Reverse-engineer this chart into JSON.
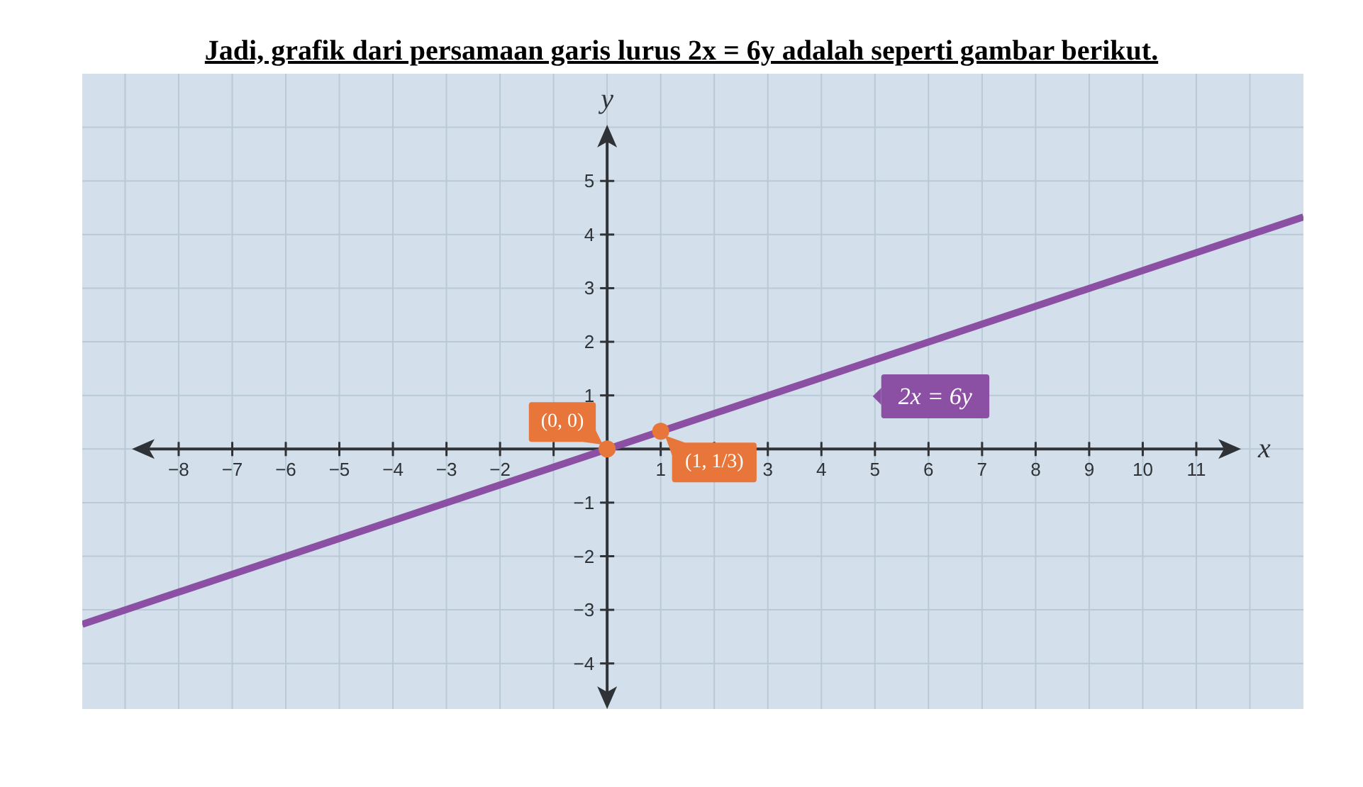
{
  "chart_data": {
    "type": "line",
    "title": "Jadi, grafik dari persamaan garis lurus 2x = 6y adalah seperti gambar berikut.",
    "xlabel": "x",
    "ylabel": "y",
    "xlim": [
      -9.8,
      13
    ],
    "ylim": [
      -4.85,
      7
    ],
    "xticks": [
      {
        "value": -9,
        "label": null
      },
      {
        "value": -8,
        "label": "−8"
      },
      {
        "value": -7,
        "label": "−7"
      },
      {
        "value": -6,
        "label": "−6"
      },
      {
        "value": -5,
        "label": "−5"
      },
      {
        "value": -4,
        "label": "−4"
      },
      {
        "value": -3,
        "label": "−3"
      },
      {
        "value": -2,
        "label": "−2"
      },
      {
        "value": -1,
        "label": null
      },
      {
        "value": 0,
        "label": null
      },
      1,
      {
        "value": 2,
        "label": null
      },
      3,
      4,
      5,
      6,
      7,
      8,
      9,
      10,
      11,
      {
        "value": 12,
        "label": null
      }
    ],
    "yticks": [
      {
        "value": -4,
        "label": "−4"
      },
      {
        "value": -3,
        "label": "−3"
      },
      {
        "value": -2,
        "label": "−2"
      },
      {
        "value": -1,
        "label": "−1"
      },
      {
        "value": 0,
        "label": null
      },
      1,
      2,
      3,
      4,
      5,
      {
        "value": 6,
        "label": null
      }
    ],
    "grid": true,
    "series": [
      {
        "name": "2x = 6y",
        "color": "#8b4fa3",
        "x": [
          -9.8,
          13
        ],
        "values": [
          -3.27,
          4.33
        ]
      },
      {
        "type": "scatter",
        "color": "#e8763a",
        "marker": "circle",
        "x": [
          0,
          1
        ],
        "values": [
          0,
          0.33
        ],
        "value_labels": [
          "(0, 0)",
          "(1, 1/3)"
        ]
      }
    ]
  }
}
